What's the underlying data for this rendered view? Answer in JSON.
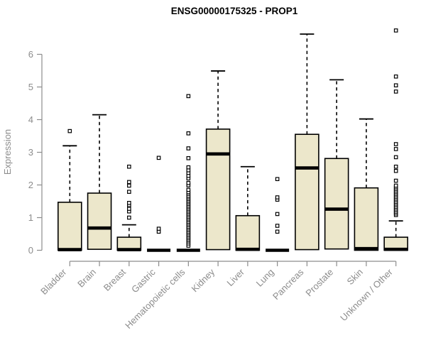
{
  "chart_data": {
    "type": "boxplot",
    "title": "ENSG00000175325 - PROP1",
    "xlabel": "",
    "ylabel": "Expression",
    "ylim": [
      0,
      6.8
    ],
    "yticks": [
      0,
      1,
      2,
      3,
      4,
      5,
      6
    ],
    "grid": false,
    "legend": "none",
    "colors": {
      "box_fill": "#ECE7CB",
      "box_edge": "#000000",
      "median": "#000000",
      "whisker": "#000000",
      "axis": "#8C8C8C",
      "title": "#000000",
      "background": "#FFFFFF"
    },
    "categories": [
      "Bladder",
      "Brain",
      "Breast",
      "Gastric",
      "Hematopoietic cells",
      "Kidney",
      "Liver",
      "Lung",
      "Pancreas",
      "Prostate",
      "Skin",
      "Unknown / Other"
    ],
    "series": [
      {
        "category": "Bladder",
        "whisker_low": 0,
        "q1": 0,
        "median": 0.02,
        "q3": 1.47,
        "whisker_high": 3.2,
        "outliers": [
          3.65
        ]
      },
      {
        "category": "Brain",
        "whisker_low": 0,
        "q1": 0.03,
        "median": 0.68,
        "q3": 1.75,
        "whisker_high": 4.15,
        "outliers": []
      },
      {
        "category": "Breast",
        "whisker_low": 0,
        "q1": 0,
        "median": 0.02,
        "q3": 0.4,
        "whisker_high": 0.78,
        "outliers": [
          1.0,
          1.19,
          1.27,
          1.38,
          1.45,
          1.79,
          1.98,
          2.09,
          2.56
        ]
      },
      {
        "category": "Gastric",
        "whisker_low": 0,
        "q1": 0,
        "median": 0,
        "q3": 0.02,
        "whisker_high": 0.02,
        "outliers": [
          0.57,
          0.66,
          2.83
        ]
      },
      {
        "category": "Hematopoietic cells",
        "whisker_low": 0,
        "q1": 0,
        "median": 0,
        "q3": 0.02,
        "whisker_high": 0.02,
        "outliers": [
          0.14,
          0.21,
          0.27,
          0.32,
          0.37,
          0.42,
          0.47,
          0.52,
          0.57,
          0.62,
          0.67,
          0.72,
          0.77,
          0.82,
          0.87,
          0.92,
          0.97,
          1.02,
          1.07,
          1.12,
          1.17,
          1.22,
          1.27,
          1.32,
          1.37,
          1.42,
          1.47,
          1.52,
          1.57,
          1.62,
          1.67,
          1.73,
          1.78,
          1.85,
          1.99,
          2.06,
          2.2,
          2.28,
          2.37,
          2.45,
          2.54,
          2.82,
          3.12,
          3.58,
          4.72
        ]
      },
      {
        "category": "Kidney",
        "whisker_low": 0,
        "q1": 0.02,
        "median": 2.95,
        "q3": 3.71,
        "whisker_high": 5.49,
        "outliers": []
      },
      {
        "category": "Liver",
        "whisker_low": 0,
        "q1": 0,
        "median": 0.03,
        "q3": 1.06,
        "whisker_high": 2.56,
        "outliers": []
      },
      {
        "category": "Lung",
        "whisker_low": 0,
        "q1": 0,
        "median": 0,
        "q3": 0.02,
        "whisker_high": 0.02,
        "outliers": [
          0.57,
          0.75,
          1.11,
          1.55,
          1.62,
          2.18
        ]
      },
      {
        "category": "Pancreas",
        "whisker_low": 0,
        "q1": 0.02,
        "median": 2.52,
        "q3": 3.55,
        "whisker_high": 6.62,
        "outliers": []
      },
      {
        "category": "Prostate",
        "whisker_low": 0,
        "q1": 0.04,
        "median": 1.26,
        "q3": 2.81,
        "whisker_high": 5.22,
        "outliers": []
      },
      {
        "category": "Skin",
        "whisker_low": 0,
        "q1": 0,
        "median": 0.05,
        "q3": 1.91,
        "whisker_high": 4.02,
        "outliers": []
      },
      {
        "category": "Unknown / Other",
        "whisker_low": 0,
        "q1": 0,
        "median": 0.03,
        "q3": 0.4,
        "whisker_high": 0.9,
        "outliers": [
          1.08,
          1.13,
          1.18,
          1.23,
          1.28,
          1.33,
          1.38,
          1.43,
          1.48,
          1.53,
          1.58,
          1.63,
          1.68,
          1.73,
          1.78,
          1.83,
          1.88,
          1.93,
          1.98,
          2.13,
          2.43,
          2.56,
          2.85,
          3.1,
          3.25,
          4.86,
          5.05,
          5.32,
          6.73
        ]
      }
    ]
  }
}
